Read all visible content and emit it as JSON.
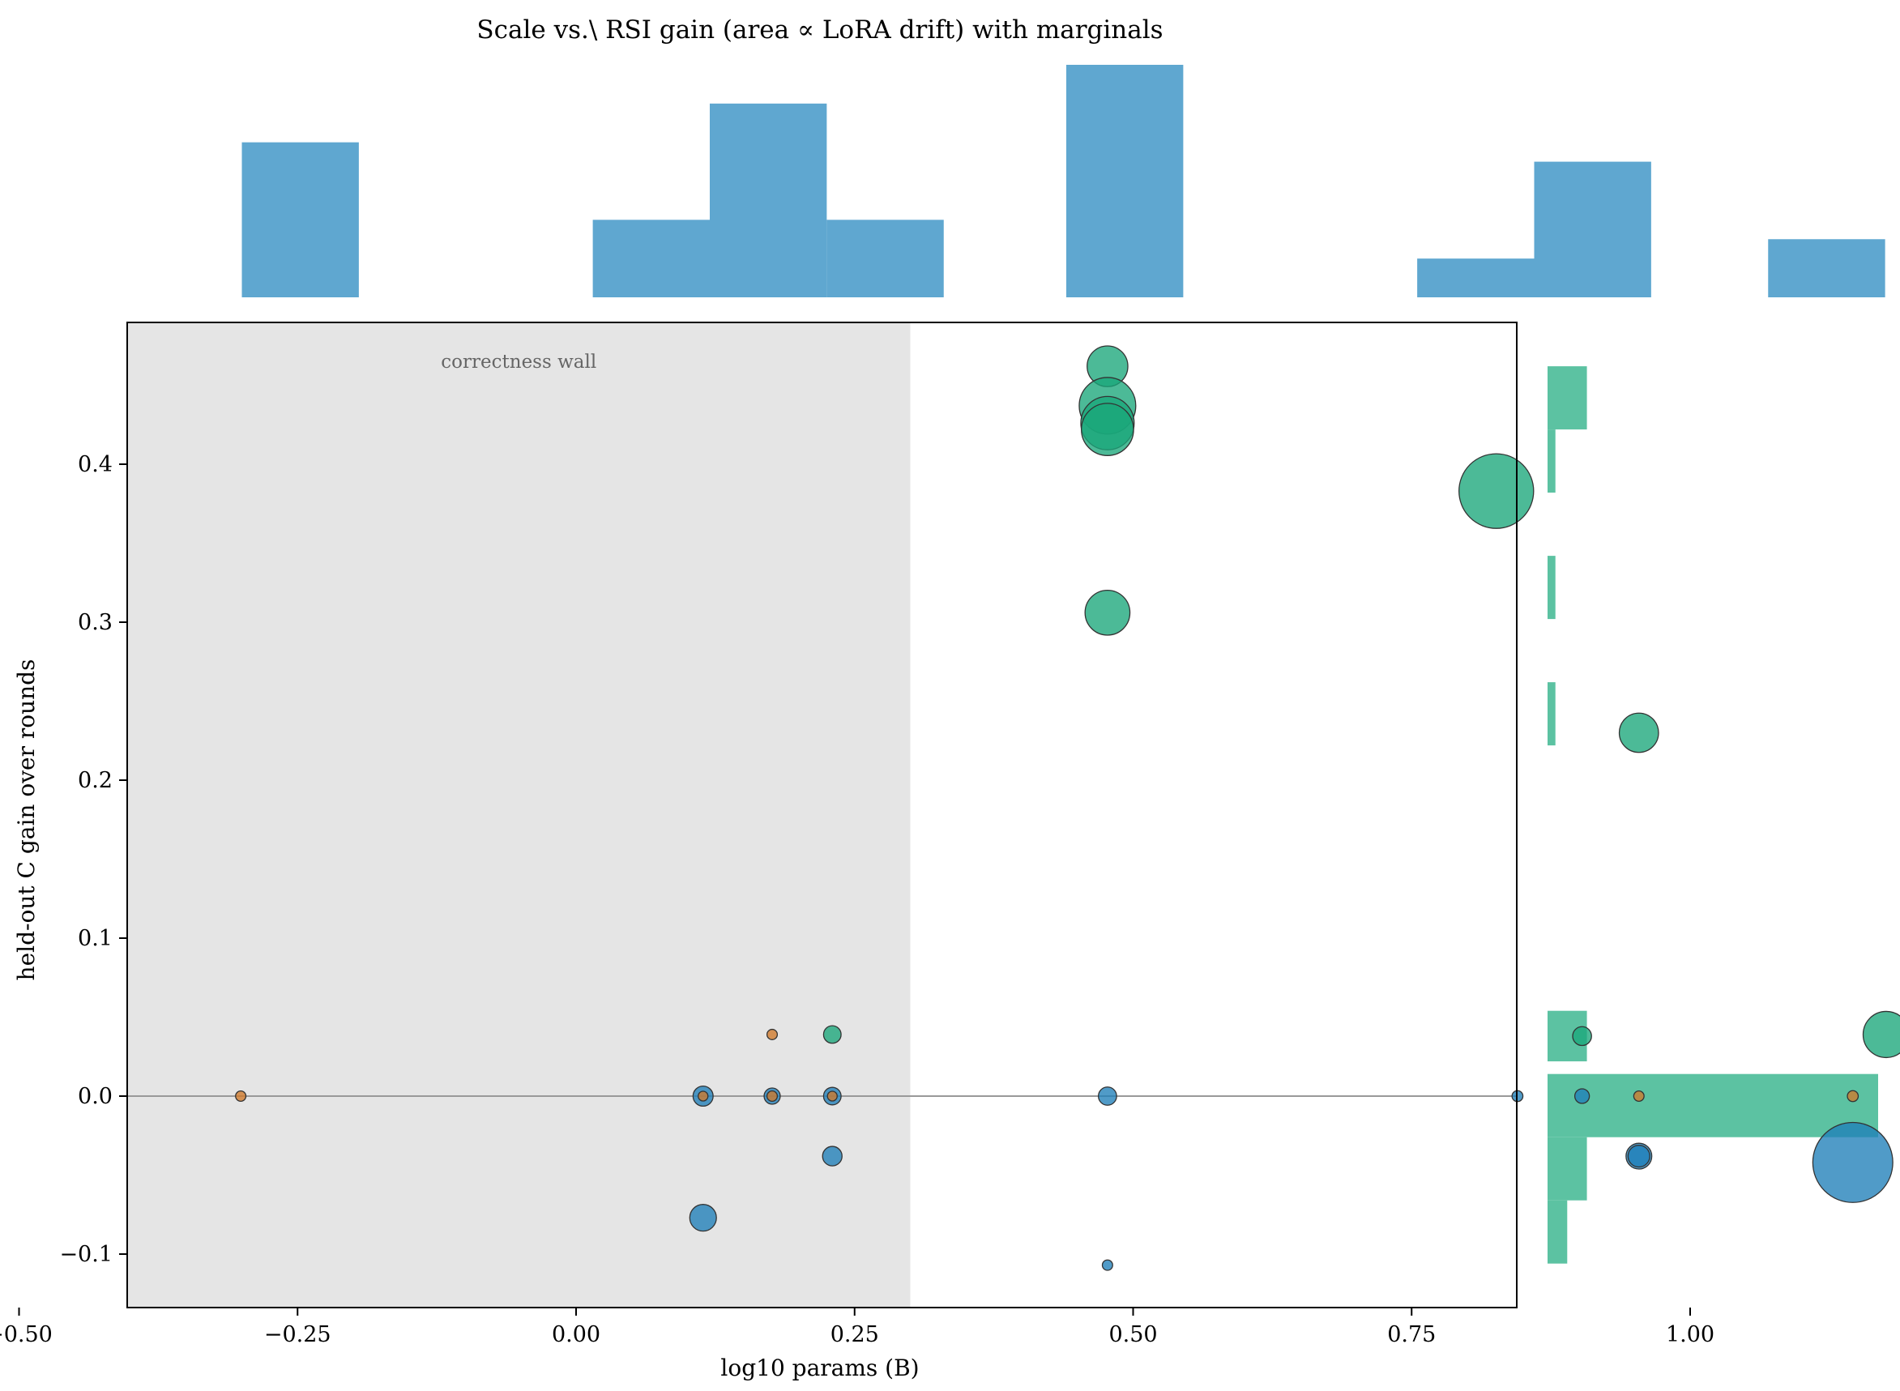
{
  "chart_data": {
    "type": "scatter",
    "title": "Scale vs.\\ RSI gain (area ∝ LoRA drift) with marginals",
    "xlabel": "log10 params (B)",
    "ylabel": "held-out C gain over rounds",
    "xlim": [
      -0.61,
      1.26
    ],
    "ylim": [
      -0.134,
      0.49
    ],
    "xticks": [
      -0.5,
      -0.25,
      0.0,
      0.25,
      0.5,
      0.75,
      1.0,
      1.25
    ],
    "xtick_labels": [
      "−0.50",
      "−0.25",
      "0.00",
      "0.25",
      "0.50",
      "0.75",
      "1.00",
      "1.25"
    ],
    "yticks": [
      -0.1,
      0.0,
      0.1,
      0.2,
      0.3,
      0.4
    ],
    "ytick_labels": [
      "−0.1",
      "0.0",
      "0.1",
      "0.2",
      "0.3",
      "0.4"
    ],
    "grid": false,
    "reference_line_y": 0.0,
    "shaded_region": {
      "x": [
        -0.52,
        0.3
      ],
      "label": "correctness wall",
      "color": "#e5e5e5"
    },
    "colors": {
      "green": "#1aa67a",
      "blue": "#1f7fb8",
      "orange": "#d17a2a",
      "edge": "#333333"
    },
    "series": [
      {
        "color": "#1aa67a",
        "points": [
          {
            "x": 0.477,
            "y": 0.462,
            "size": 700
          },
          {
            "x": 0.477,
            "y": 0.437,
            "size": 1350
          },
          {
            "x": 0.477,
            "y": 0.426,
            "size": 1200
          },
          {
            "x": 0.477,
            "y": 0.422,
            "size": 1150
          },
          {
            "x": 0.826,
            "y": 0.383,
            "size": 2350
          },
          {
            "x": 0.477,
            "y": 0.306,
            "size": 850
          },
          {
            "x": 0.954,
            "y": 0.23,
            "size": 650
          },
          {
            "x": 0.23,
            "y": 0.039,
            "size": 130
          },
          {
            "x": 0.903,
            "y": 0.038,
            "size": 150
          },
          {
            "x": 1.176,
            "y": 0.039,
            "size": 900
          }
        ]
      },
      {
        "color": "#1f7fb8",
        "points": [
          {
            "x": 0.114,
            "y": 0.0,
            "size": 170
          },
          {
            "x": 0.176,
            "y": 0.0,
            "size": 110
          },
          {
            "x": 0.23,
            "y": 0.0,
            "size": 130
          },
          {
            "x": 0.477,
            "y": 0.0,
            "size": 140
          },
          {
            "x": 0.845,
            "y": 0.0,
            "size": 50
          },
          {
            "x": 0.903,
            "y": 0.0,
            "size": 90
          },
          {
            "x": 0.954,
            "y": -0.038,
            "size": 280
          },
          {
            "x": 0.954,
            "y": -0.038,
            "size": 200
          },
          {
            "x": 1.146,
            "y": -0.042,
            "size": 2700
          },
          {
            "x": 0.23,
            "y": -0.038,
            "size": 160
          },
          {
            "x": 0.114,
            "y": -0.077,
            "size": 300
          },
          {
            "x": 0.477,
            "y": -0.107,
            "size": 45
          }
        ]
      },
      {
        "color": "#d17a2a",
        "points": [
          {
            "x": -0.301,
            "y": 0.0,
            "size": 45
          },
          {
            "x": 0.114,
            "y": 0.0,
            "size": 40
          },
          {
            "x": 0.176,
            "y": 0.0,
            "size": 45
          },
          {
            "x": 0.23,
            "y": 0.0,
            "size": 40
          },
          {
            "x": 0.176,
            "y": 0.039,
            "size": 45
          },
          {
            "x": 0.954,
            "y": 0.0,
            "size": 45
          },
          {
            "x": 1.146,
            "y": 0.0,
            "size": 50
          }
        ]
      }
    ],
    "marginal_x": {
      "color": "#5fa7d0",
      "bins": [
        {
          "x0": -0.3,
          "x1": -0.195,
          "count": 4
        },
        {
          "x0": 0.015,
          "x1": 0.12,
          "count": 2
        },
        {
          "x0": 0.12,
          "x1": 0.225,
          "count": 5
        },
        {
          "x0": 0.225,
          "x1": 0.33,
          "count": 2
        },
        {
          "x0": 0.44,
          "x1": 0.545,
          "count": 6
        },
        {
          "x0": 0.755,
          "x1": 0.86,
          "count": 1
        },
        {
          "x0": 0.86,
          "x1": 0.965,
          "count": 3.5
        },
        {
          "x0": 1.07,
          "x1": 1.175,
          "count": 1.5
        }
      ]
    },
    "marginal_y": {
      "color": "#5cc2a2",
      "bins": [
        {
          "y0": 0.422,
          "y1": 0.462,
          "count": 5
        },
        {
          "y0": 0.382,
          "y1": 0.422,
          "count": 1
        },
        {
          "y0": 0.302,
          "y1": 0.342,
          "count": 1
        },
        {
          "y0": 0.222,
          "y1": 0.262,
          "count": 1
        },
        {
          "y0": 0.022,
          "y1": 0.054,
          "count": 5
        },
        {
          "y0": -0.026,
          "y1": 0.014,
          "count": 42
        },
        {
          "y0": -0.066,
          "y1": -0.026,
          "count": 5
        },
        {
          "y0": -0.106,
          "y1": -0.066,
          "count": 2.5
        }
      ]
    }
  }
}
